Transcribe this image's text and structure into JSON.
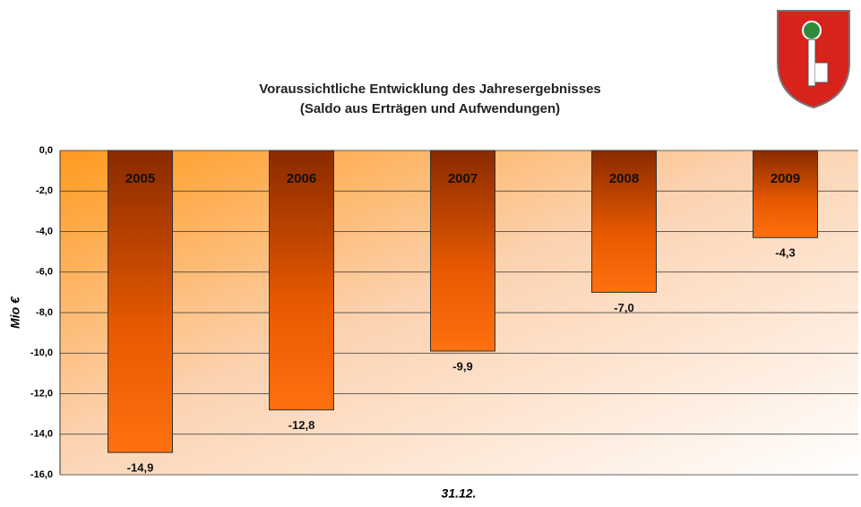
{
  "chart_data": {
    "type": "bar",
    "title": "Voraussichtliche Entwicklung des Jahresergebnisses",
    "subtitle": "(Saldo aus Erträgen und Aufwendungen)",
    "ylabel": "Mio €",
    "xlabel": "31.12.",
    "categories": [
      "2005",
      "2006",
      "2007",
      "2008",
      "2009"
    ],
    "values": [
      -14.9,
      -12.8,
      -9.9,
      -7.0,
      -4.3
    ],
    "value_labels": [
      "-14,9",
      "-12,8",
      "-9,9",
      "-7,0",
      "-4,3"
    ],
    "color": "#ff6a00",
    "ylim": [
      -16,
      0
    ],
    "yticks": [
      {
        "value": 0,
        "label": "0,0"
      },
      {
        "value": -2,
        "label": "-2,0"
      },
      {
        "value": -4,
        "label": "-4,0"
      },
      {
        "value": -6,
        "label": "-6,0"
      },
      {
        "value": -8,
        "label": "-8,0"
      },
      {
        "value": -10,
        "label": "-10,0"
      },
      {
        "value": -12,
        "label": "-12,0"
      },
      {
        "value": -14,
        "label": "-14,0"
      },
      {
        "value": -16,
        "label": "-16,0"
      }
    ],
    "grid": true
  }
}
